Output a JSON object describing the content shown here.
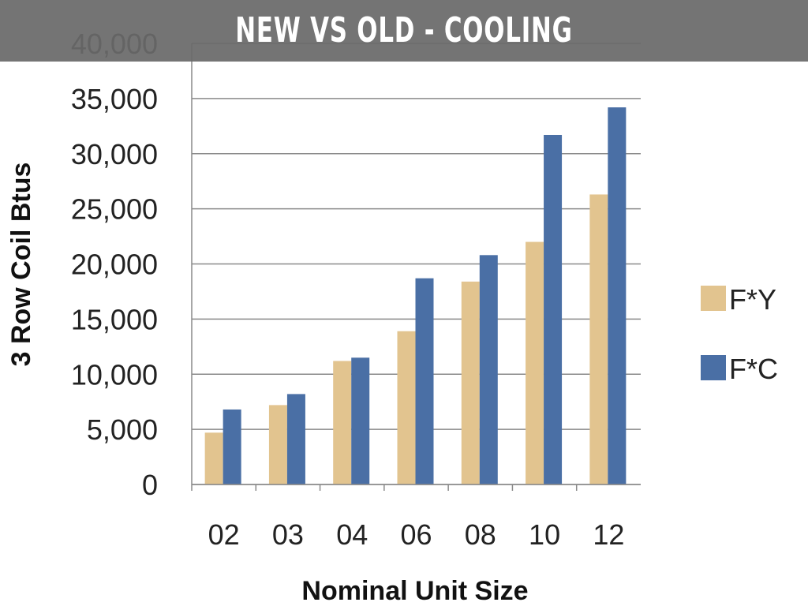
{
  "header": {
    "title": "NEW VS OLD - COOLING"
  },
  "chart_data": {
    "type": "bar",
    "title": "NEW VS OLD - COOLING",
    "xlabel": "Nominal Unit Size",
    "ylabel": "3 Row Coil Btus",
    "categories": [
      "02",
      "03",
      "04",
      "06",
      "08",
      "10",
      "12"
    ],
    "ylim": [
      0,
      40000
    ],
    "yticks": [
      0,
      5000,
      10000,
      15000,
      20000,
      25000,
      30000,
      35000,
      40000
    ],
    "ytick_labels": [
      "0",
      "5,000",
      "10,000",
      "15,000",
      "20,000",
      "25,000",
      "30,000",
      "35,000",
      "40,000"
    ],
    "grid": true,
    "legend_position": "right",
    "series": [
      {
        "name": "F*Y",
        "color": "#E2C48F",
        "values": [
          4700,
          7200,
          11200,
          13900,
          18400,
          22000,
          26300
        ]
      },
      {
        "name": "F*C",
        "color": "#4A6FA5",
        "values": [
          6800,
          8200,
          11500,
          18700,
          20800,
          31700,
          34200
        ]
      }
    ]
  }
}
